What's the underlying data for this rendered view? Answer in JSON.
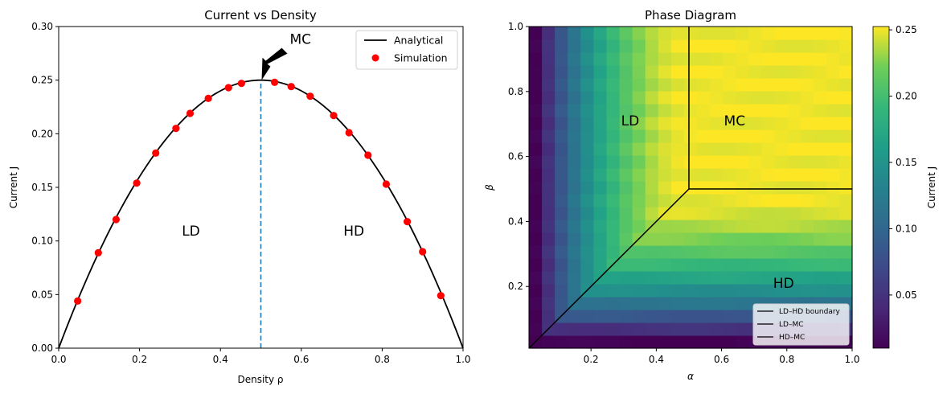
{
  "chart_data": [
    {
      "type": "line",
      "title": "Current vs Density",
      "xlabel": "Density ρ",
      "ylabel": "Current J",
      "xlim": [
        0.0,
        1.0
      ],
      "ylim": [
        0.0,
        0.3
      ],
      "xticks": [
        "0.0",
        "0.2",
        "0.4",
        "0.6",
        "0.8",
        "1.0"
      ],
      "xtick_values": [
        0.0,
        0.2,
        0.4,
        0.6,
        0.8,
        1.0
      ],
      "yticks": [
        "0.00",
        "0.05",
        "0.10",
        "0.15",
        "0.20",
        "0.25",
        "0.30"
      ],
      "ytick_values": [
        0.0,
        0.05,
        0.1,
        0.15,
        0.2,
        0.25,
        0.3
      ],
      "grid": false,
      "legend": {
        "position": "top-right",
        "entries": [
          "Analytical",
          "Simulation"
        ]
      },
      "series": [
        {
          "name": "Analytical",
          "formula": "J = ρ(1 − ρ)",
          "color": "#000000"
        },
        {
          "name": "Simulation",
          "color": "#ff0000",
          "x": [
            0.047,
            0.098,
            0.142,
            0.193,
            0.24,
            0.29,
            0.325,
            0.37,
            0.42,
            0.452,
            0.534,
            0.575,
            0.622,
            0.68,
            0.718,
            0.765,
            0.81,
            0.862,
            0.9,
            0.945
          ],
          "y": [
            0.044,
            0.089,
            0.12,
            0.154,
            0.182,
            0.205,
            0.219,
            0.233,
            0.243,
            0.247,
            0.248,
            0.244,
            0.235,
            0.217,
            0.201,
            0.18,
            0.153,
            0.118,
            0.09,
            0.049
          ]
        }
      ],
      "vline": {
        "x": 0.5,
        "style": "dashed",
        "color": "#1f77b4"
      },
      "annotations": [
        {
          "text": "MC",
          "arrow_to": [
            0.5,
            0.25
          ]
        },
        {
          "text": "LD",
          "at": [
            0.327,
            0.105
          ]
        },
        {
          "text": "HD",
          "at": [
            0.73,
            0.105
          ]
        }
      ]
    },
    {
      "type": "heatmap",
      "title": "Phase Diagram",
      "xlabel": "α",
      "ylabel": "β",
      "xlim": [
        0.01,
        1.0
      ],
      "ylim": [
        0.01,
        1.0
      ],
      "xticks": [
        "0.2",
        "0.4",
        "0.6",
        "0.8",
        "1.0"
      ],
      "xtick_values": [
        0.2,
        0.4,
        0.6,
        0.8,
        1.0
      ],
      "yticks": [
        "0.2",
        "0.4",
        "0.6",
        "0.8",
        "1.0"
      ],
      "ytick_values": [
        0.2,
        0.4,
        0.6,
        0.8,
        1.0
      ],
      "grid_size": 25,
      "value_formula": "J = min(α(1−α), β(1−β)) capped at 0.25 (α, β ≥ 0.5)",
      "colormap": "viridis",
      "colorbar": {
        "label": "Current J",
        "range": [
          0.0099,
          0.2525
        ],
        "ticks": [
          "0.05",
          "0.10",
          "0.15",
          "0.20",
          "0.25"
        ],
        "tick_values": [
          0.05,
          0.1,
          0.15,
          0.2,
          0.25
        ]
      },
      "boundaries": [
        {
          "name": "LD–HD boundary",
          "from": [
            0.01,
            0.01
          ],
          "to": [
            0.5,
            0.5
          ]
        },
        {
          "name": "LD–MC",
          "from": [
            0.5,
            0.5
          ],
          "to": [
            0.5,
            1.0
          ]
        },
        {
          "name": "HD–MC",
          "from": [
            0.5,
            0.5
          ],
          "to": [
            1.0,
            0.5
          ]
        }
      ],
      "legend": {
        "position": "bottom-right",
        "entries": [
          "LD–HD boundary",
          "LD–MC",
          "HD–MC"
        ]
      },
      "annotations": [
        {
          "text": "LD",
          "at": [
            0.32,
            0.71
          ]
        },
        {
          "text": "MC",
          "at": [
            0.64,
            0.71
          ]
        },
        {
          "text": "HD",
          "at": [
            0.79,
            0.21
          ]
        }
      ]
    }
  ]
}
